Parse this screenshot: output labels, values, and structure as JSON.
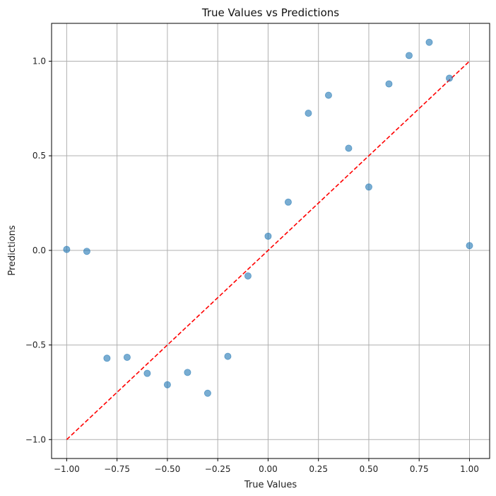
{
  "chart_data": {
    "type": "scatter",
    "title": "True Values vs Predictions",
    "xlabel": "True Values",
    "ylabel": "Predictions",
    "xlim": [
      -1.075,
      1.1
    ],
    "ylim": [
      -1.1,
      1.2
    ],
    "grid": true,
    "x_ticks": [
      -1.0,
      -0.75,
      -0.5,
      -0.25,
      0.0,
      0.25,
      0.5,
      0.75,
      1.0
    ],
    "x_tick_labels": [
      "−1.00",
      "−0.75",
      "−0.50",
      "−0.25",
      "0.00",
      "0.25",
      "0.50",
      "0.75",
      "1.00"
    ],
    "y_ticks": [
      -1.0,
      -0.5,
      0.0,
      0.5,
      1.0
    ],
    "y_tick_labels": [
      "−1.0",
      "−0.5",
      "0.0",
      "0.5",
      "1.0"
    ],
    "points": {
      "x": [
        -1.0,
        -0.9,
        -0.8,
        -0.7,
        -0.6,
        -0.5,
        -0.4,
        -0.3,
        -0.2,
        -0.1,
        0.0,
        0.1,
        0.2,
        0.3,
        0.4,
        0.5,
        0.6,
        0.7,
        0.8,
        0.9,
        1.0
      ],
      "y": [
        0.005,
        -0.005,
        -0.57,
        -0.565,
        -0.65,
        -0.71,
        -0.645,
        -0.755,
        -0.56,
        -0.135,
        0.075,
        0.255,
        0.725,
        0.82,
        0.54,
        0.335,
        0.88,
        1.03,
        1.1,
        0.91,
        0.025
      ]
    },
    "reference_line": {
      "x": [
        -1.0,
        1.0
      ],
      "y": [
        -1.0,
        1.0
      ],
      "style": "dashed"
    },
    "colors": {
      "points": "#1f77b4",
      "reference_line": "#ff0000",
      "grid": "#b0b0b0"
    }
  }
}
